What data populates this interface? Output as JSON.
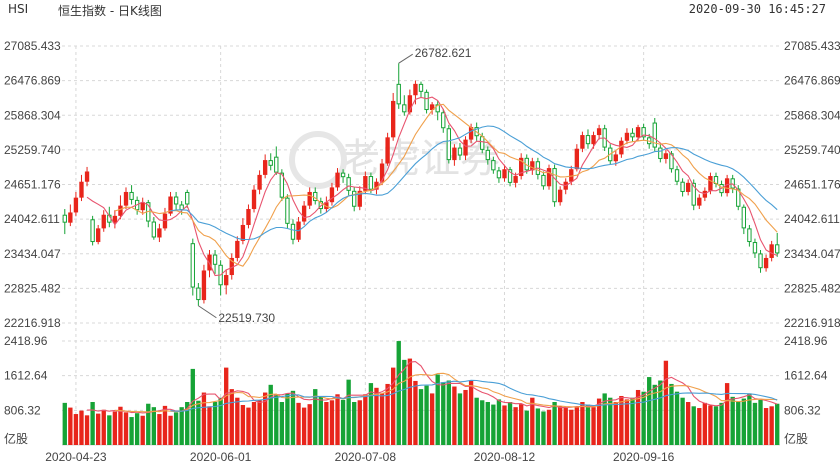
{
  "header": {
    "symbol": "HSI",
    "name": "恒生指数 - 日K线图",
    "datetime": "2020-09-30 16:45:27"
  },
  "watermark": "老虎证券",
  "colors": {
    "up": "#e8251b",
    "down": "#16a336",
    "ma5": "#e8546f",
    "ma10": "#f0a04b",
    "ma20": "#4a9fd6",
    "grid": "#d8d8d8",
    "axis_text": "#444444"
  },
  "chart_data": {
    "type": "candlestick",
    "price_axis": {
      "ticks": [
        "27085.433",
        "26476.869",
        "25868.304",
        "25259.740",
        "24651.176",
        "24042.611",
        "23434.047",
        "22825.482",
        "22216.918"
      ],
      "range": [
        22216.918,
        27085.433
      ]
    },
    "volume_axis": {
      "ticks": [
        "2418.96",
        "1612.64",
        "806.32"
      ],
      "unit": "亿股",
      "range": [
        0,
        2418.96
      ]
    },
    "x_ticks": [
      "2020-04-23",
      "2020-06-01",
      "2020-07-08",
      "2020-08-12",
      "2020-09-16"
    ],
    "annotations": [
      {
        "label": "26782.621",
        "kind": "high"
      },
      {
        "label": "22519.730",
        "kind": "low"
      }
    ],
    "series": [
      {
        "name": "MA5",
        "color": "#e8546f"
      },
      {
        "name": "MA10",
        "color": "#f0a04b"
      },
      {
        "name": "MA20",
        "color": "#4a9fd6"
      }
    ],
    "candles": [
      [
        24120,
        23980,
        24220,
        23780,
        980
      ],
      [
        23980,
        24160,
        24300,
        23920,
        870
      ],
      [
        24160,
        24420,
        24520,
        24100,
        720
      ],
      [
        24420,
        24700,
        24820,
        24360,
        800
      ],
      [
        24700,
        24880,
        24960,
        24620,
        690
      ],
      [
        24040,
        23640,
        24100,
        23580,
        1000
      ],
      [
        23640,
        23880,
        23940,
        23600,
        730
      ],
      [
        23880,
        24120,
        24200,
        23820,
        820
      ],
      [
        24120,
        23980,
        24260,
        23900,
        690
      ],
      [
        23980,
        24100,
        24200,
        23880,
        780
      ],
      [
        24100,
        24280,
        24460,
        24040,
        890
      ],
      [
        24280,
        24520,
        24600,
        24220,
        760
      ],
      [
        24520,
        24380,
        24640,
        24300,
        650
      ],
      [
        24380,
        24200,
        24440,
        24120,
        740
      ],
      [
        24200,
        24340,
        24420,
        24120,
        680
      ],
      [
        24340,
        24000,
        24380,
        23900,
        960
      ],
      [
        24000,
        23720,
        24080,
        23680,
        880
      ],
      [
        23720,
        23880,
        23960,
        23640,
        720
      ],
      [
        23880,
        24140,
        24240,
        23840,
        910
      ],
      [
        24140,
        24440,
        24520,
        24100,
        680
      ],
      [
        24440,
        24300,
        24520,
        24200,
        760
      ],
      [
        24300,
        24200,
        24360,
        24120,
        880
      ],
      [
        24520,
        24300,
        24560,
        24240,
        1000
      ],
      [
        23620,
        22840,
        23700,
        22700,
        1770
      ],
      [
        22840,
        22620,
        22920,
        22519.73,
        1030
      ],
      [
        22620,
        23140,
        23240,
        22560,
        1220
      ],
      [
        23140,
        23420,
        23500,
        23020,
        900
      ],
      [
        23420,
        23240,
        23500,
        23080,
        1000
      ],
      [
        23240,
        22880,
        23320,
        22700,
        1100
      ],
      [
        22880,
        23060,
        23160,
        22720,
        1800
      ],
      [
        23060,
        23360,
        23440,
        22980,
        1300
      ],
      [
        23360,
        23660,
        23740,
        23300,
        1100
      ],
      [
        23660,
        23940,
        24060,
        23600,
        930
      ],
      [
        23940,
        24220,
        24300,
        23880,
        870
      ],
      [
        24220,
        24560,
        24640,
        24160,
        1000
      ],
      [
        24560,
        24820,
        24900,
        24480,
        1040
      ],
      [
        24820,
        25080,
        25180,
        24760,
        1220
      ],
      [
        25080,
        24980,
        25200,
        24900,
        1400
      ],
      [
        25140,
        24860,
        25320,
        24820,
        1180
      ],
      [
        24860,
        24420,
        24920,
        24360,
        1000
      ],
      [
        24420,
        23960,
        24480,
        23880,
        1200
      ],
      [
        23960,
        23680,
        24040,
        23600,
        1260
      ],
      [
        23680,
        24000,
        24080,
        23640,
        980
      ],
      [
        24000,
        24280,
        24360,
        23940,
        870
      ],
      [
        24280,
        24520,
        24600,
        24220,
        950
      ],
      [
        24520,
        24360,
        24600,
        24300,
        1300
      ],
      [
        24360,
        24220,
        24420,
        24140,
        1120
      ],
      [
        24220,
        24340,
        24440,
        24160,
        1000
      ],
      [
        24340,
        24600,
        24680,
        24280,
        1040
      ],
      [
        24600,
        24860,
        24940,
        24540,
        1180
      ],
      [
        24860,
        24780,
        24920,
        24680,
        1050
      ],
      [
        24780,
        24540,
        24840,
        24460,
        1520
      ],
      [
        24540,
        24260,
        24600,
        24180,
        1000
      ],
      [
        24260,
        24540,
        24620,
        24200,
        1040
      ],
      [
        24540,
        24800,
        24880,
        24480,
        1180
      ],
      [
        24800,
        24560,
        24860,
        24500,
        1440
      ],
      [
        24560,
        24700,
        24760,
        24480,
        1330
      ],
      [
        24700,
        25020,
        25100,
        24640,
        1200
      ],
      [
        25020,
        25480,
        25560,
        24980,
        1420
      ],
      [
        25480,
        26120,
        26260,
        25420,
        1800
      ],
      [
        26420,
        26060,
        26782.621,
        25980,
        2418
      ],
      [
        26060,
        25920,
        26220,
        25860,
        1980
      ],
      [
        25920,
        26220,
        26320,
        25880,
        2010
      ],
      [
        26220,
        26420,
        26480,
        26060,
        1490
      ],
      [
        26420,
        26280,
        26460,
        26180,
        1300
      ],
      [
        26280,
        25960,
        26320,
        25900,
        1380
      ],
      [
        25960,
        26060,
        26100,
        25880,
        1200
      ],
      [
        26060,
        25920,
        26120,
        25780,
        1640
      ],
      [
        25920,
        25640,
        25980,
        25560,
        1460
      ],
      [
        25640,
        25080,
        25700,
        25020,
        1500
      ],
      [
        25080,
        25300,
        25360,
        24980,
        1360
      ],
      [
        25300,
        25160,
        25380,
        25080,
        1200
      ],
      [
        25160,
        25440,
        25500,
        25080,
        1280
      ],
      [
        25440,
        25660,
        25720,
        25380,
        1500
      ],
      [
        25660,
        25500,
        25740,
        25420,
        1100
      ],
      [
        25500,
        25260,
        25560,
        25200,
        1040
      ],
      [
        25260,
        25080,
        25320,
        25000,
        1000
      ],
      [
        25080,
        24900,
        25140,
        24840,
        940
      ],
      [
        24900,
        24760,
        24960,
        24680,
        1060
      ],
      [
        24760,
        24920,
        25000,
        24700,
        920
      ],
      [
        24920,
        24680,
        24960,
        24620,
        1000
      ],
      [
        24680,
        24800,
        24860,
        24600,
        880
      ],
      [
        24800,
        25120,
        25200,
        24740,
        950
      ],
      [
        25120,
        24900,
        25180,
        24840,
        800
      ],
      [
        24900,
        25060,
        25120,
        24820,
        1100
      ],
      [
        25060,
        24820,
        25120,
        24740,
        850
      ],
      [
        24820,
        24620,
        24880,
        24560,
        780
      ],
      [
        24620,
        24940,
        25000,
        24560,
        820
      ],
      [
        24940,
        24340,
        25000,
        24260,
        1000
      ],
      [
        24340,
        24560,
        24620,
        24280,
        900
      ],
      [
        24560,
        24700,
        24760,
        24480,
        860
      ],
      [
        24700,
        24920,
        24980,
        24640,
        820
      ],
      [
        24920,
        25280,
        25360,
        24880,
        880
      ],
      [
        25280,
        25520,
        25580,
        25220,
        1000
      ],
      [
        25520,
        25360,
        25620,
        25280,
        940
      ],
      [
        25360,
        25520,
        25580,
        25280,
        880
      ],
      [
        25520,
        25640,
        25700,
        25440,
        1080
      ],
      [
        25640,
        25300,
        25700,
        25240,
        1200
      ],
      [
        25300,
        25060,
        25360,
        25000,
        1100
      ],
      [
        25060,
        25180,
        25240,
        24980,
        1000
      ],
      [
        25180,
        25420,
        25480,
        25120,
        1140
      ],
      [
        25420,
        25560,
        25640,
        25360,
        1060
      ],
      [
        25560,
        25480,
        25640,
        25400,
        1100
      ],
      [
        25480,
        25660,
        25700,
        25420,
        1280
      ],
      [
        25660,
        25480,
        25720,
        25420,
        1240
      ],
      [
        25480,
        25360,
        25540,
        25280,
        1580
      ],
      [
        25740,
        25300,
        25820,
        25240,
        1400
      ],
      [
        25300,
        25100,
        25360,
        25040,
        1500
      ],
      [
        25100,
        25200,
        25260,
        25020,
        1960
      ],
      [
        25200,
        24920,
        25240,
        24860,
        1420
      ],
      [
        24920,
        24700,
        24980,
        24640,
        1240
      ],
      [
        24700,
        24520,
        24760,
        24440,
        1100
      ],
      [
        24520,
        24680,
        24740,
        24460,
        1000
      ],
      [
        24680,
        24280,
        24740,
        24200,
        900
      ],
      [
        24280,
        24420,
        24480,
        24220,
        860
      ],
      [
        24420,
        24540,
        24600,
        24360,
        980
      ],
      [
        24540,
        24800,
        24860,
        24480,
        920
      ],
      [
        24800,
        24660,
        24860,
        24600,
        900
      ],
      [
        24660,
        24500,
        24720,
        24440,
        980
      ],
      [
        24500,
        24760,
        24820,
        24440,
        1440
      ],
      [
        24760,
        24580,
        24820,
        24500,
        1120
      ],
      [
        24580,
        24260,
        24640,
        24200,
        1000
      ],
      [
        24260,
        23880,
        24300,
        23780,
        1080
      ],
      [
        23880,
        23640,
        23940,
        23560,
        1200
      ],
      [
        23640,
        23440,
        23700,
        23360,
        980
      ],
      [
        23440,
        23180,
        23500,
        23100,
        1050
      ],
      [
        23180,
        23360,
        23420,
        23120,
        860
      ],
      [
        23360,
        23600,
        23660,
        23300,
        900
      ],
      [
        23600,
        23440,
        23800,
        23380,
        960
      ]
    ]
  }
}
